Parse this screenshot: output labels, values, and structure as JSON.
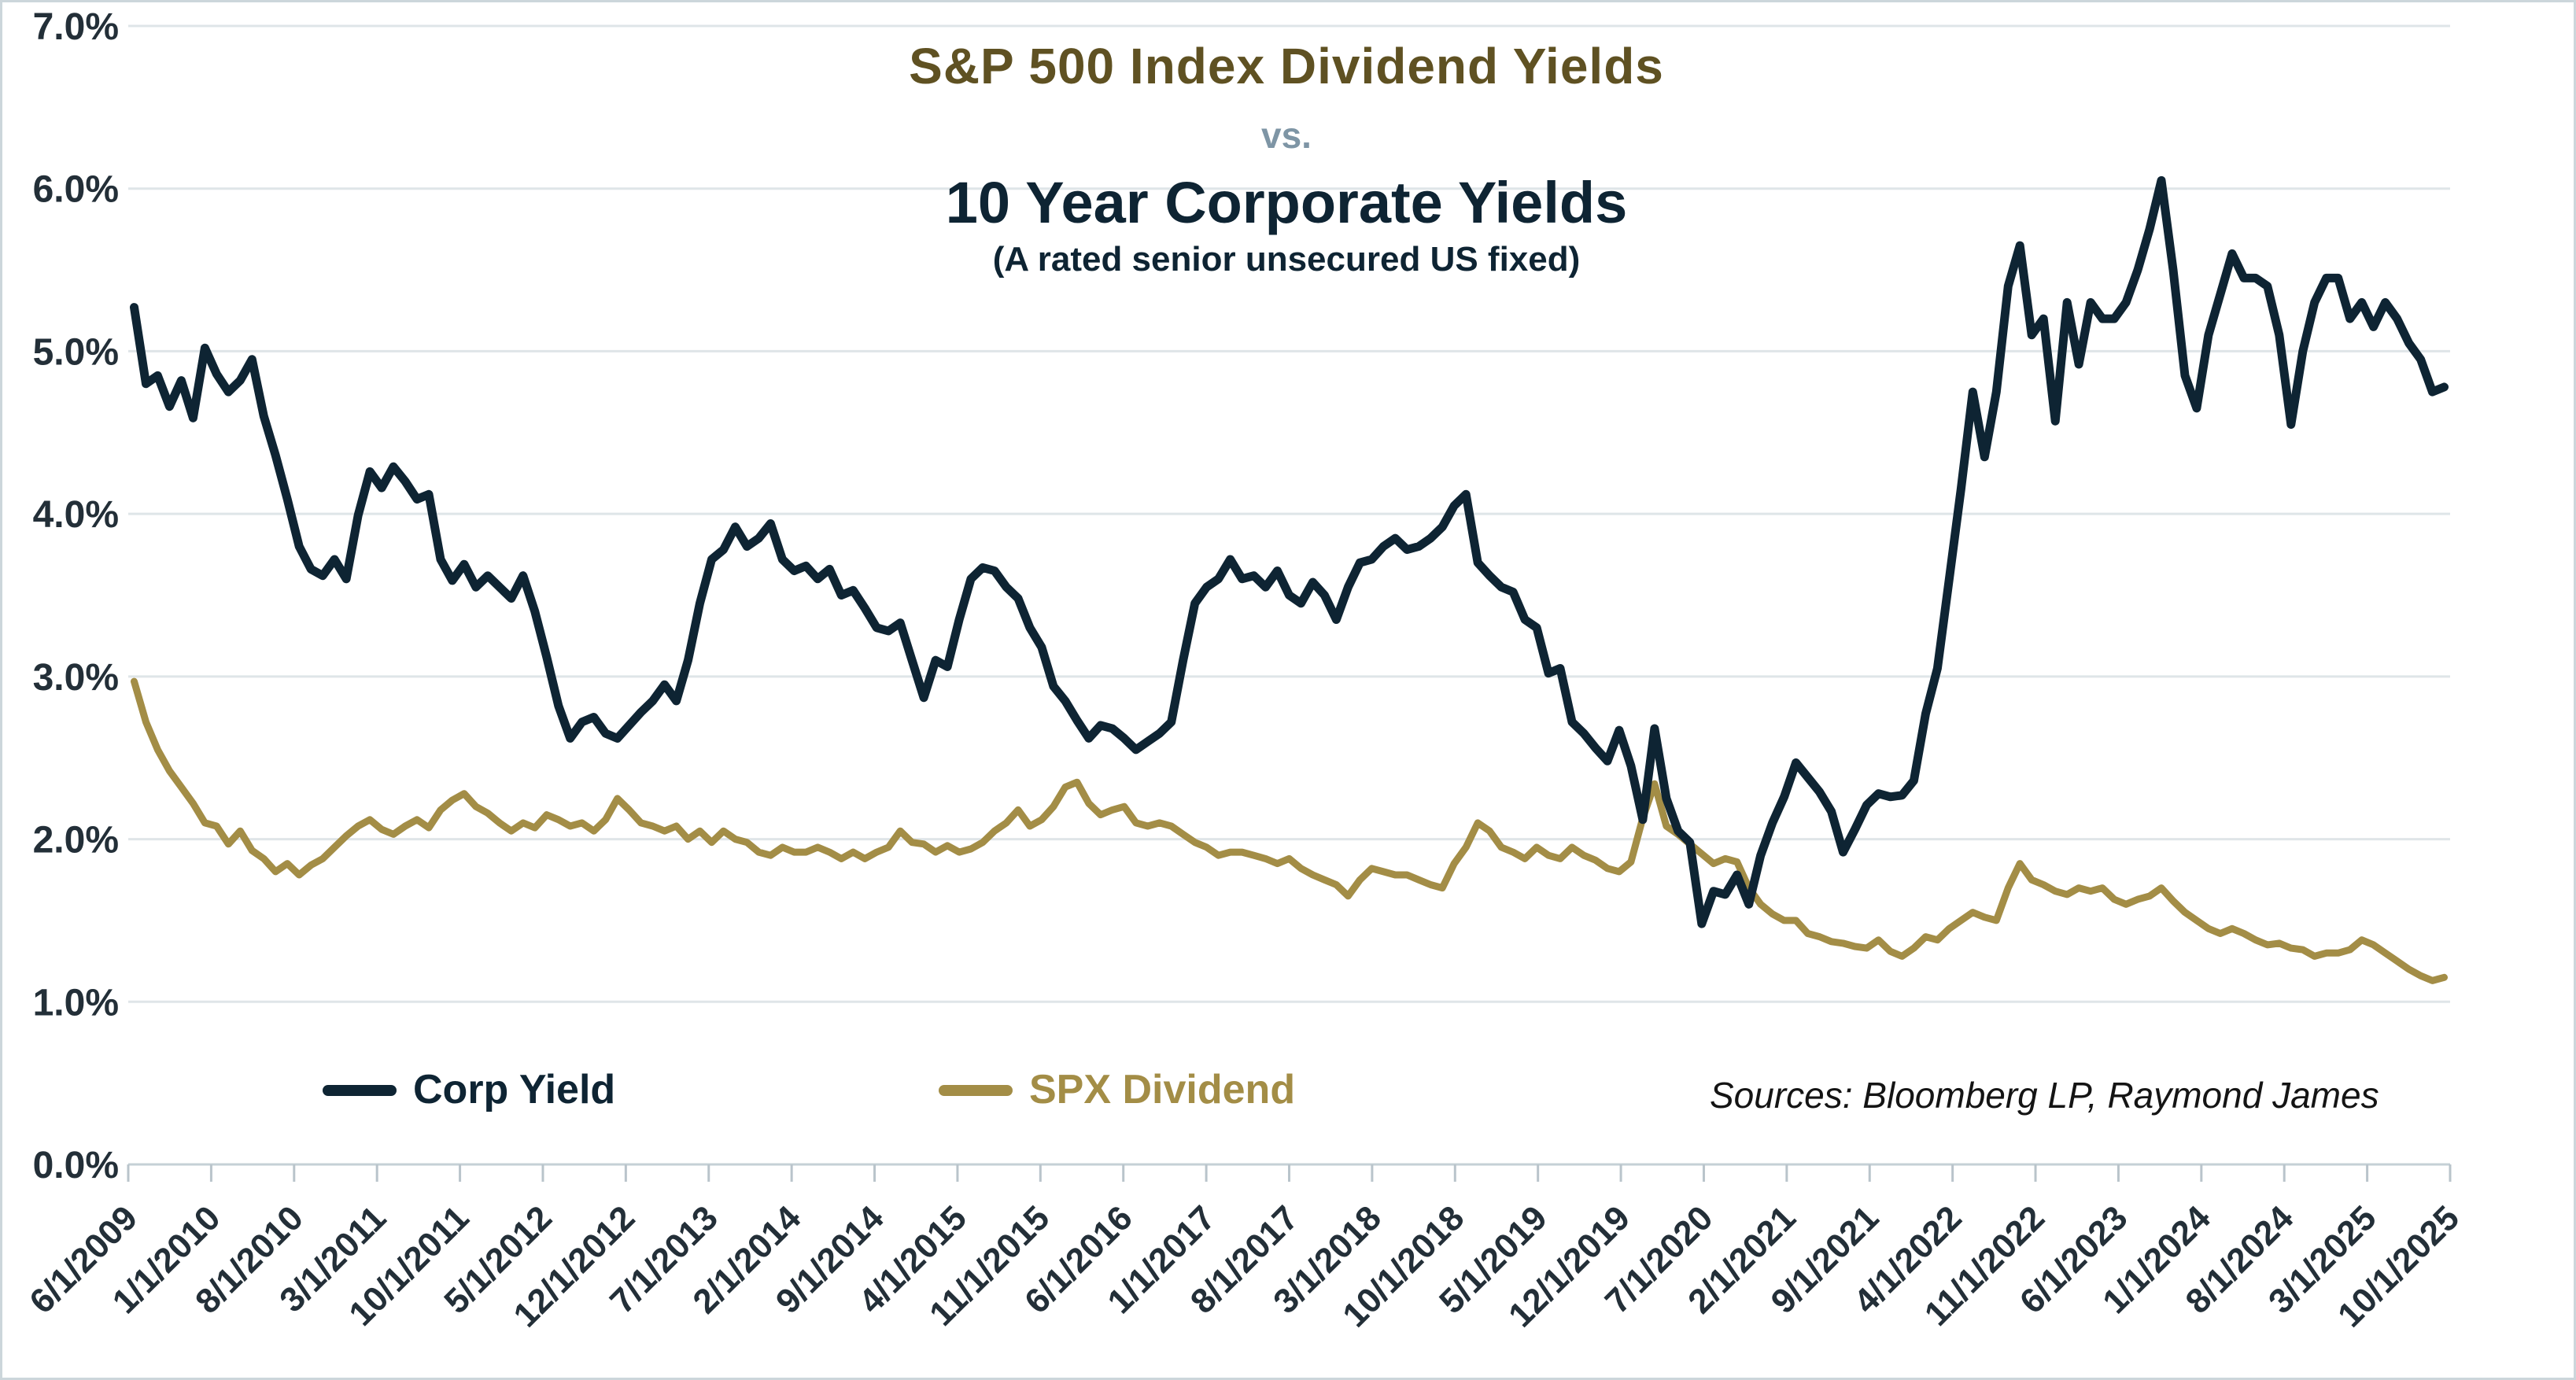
{
  "title": {
    "line1": "S&P 500 Index Dividend Yields",
    "vs": "vs.",
    "line2": "10 Year Corporate Yields",
    "subtitle": "(A rated senior unsecured US fixed)"
  },
  "source_note": "Sources: Bloomberg LP, Raymond James",
  "colors": {
    "corp_line": "#0e2433",
    "spx_line": "#a38d46",
    "title_gold": "#5f5122",
    "vs_gray_blue": "#7e95a5",
    "axis_text": "#232f38",
    "gridline": "#dfe5e8",
    "axis_line": "#c5d0d6",
    "tick_mark": "#b9c4cb",
    "background": "#ffffff"
  },
  "chart_data": {
    "type": "line",
    "start_month": "6/2009",
    "end_month": "10/2025",
    "frequency": "monthly",
    "grid": "horizontal",
    "legend_position": "bottom",
    "ylim": [
      0,
      7
    ],
    "y_tick_labels": [
      "0.0%",
      "1.0%",
      "2.0%",
      "3.0%",
      "4.0%",
      "5.0%",
      "6.0%",
      "7.0%"
    ],
    "x_tick_labels": [
      "6/1/2009",
      "1/1/2010",
      "8/1/2010",
      "3/1/2011",
      "10/1/2011",
      "5/1/2012",
      "12/1/2012",
      "7/1/2013",
      "2/1/2014",
      "9/1/2014",
      "4/1/2015",
      "11/1/2015",
      "6/1/2016",
      "1/1/2017",
      "8/1/2017",
      "3/1/2018",
      "10/1/2018",
      "5/1/2019",
      "12/1/2019",
      "7/1/2020",
      "2/1/2021",
      "9/1/2021",
      "4/1/2022",
      "11/1/2022",
      "6/1/2023",
      "1/1/2024",
      "8/1/2024",
      "3/1/2025",
      "10/1/2025"
    ],
    "series": [
      {
        "name": "Corp Yield",
        "color": "#0e2433",
        "values": [
          5.27,
          4.8,
          4.85,
          4.66,
          4.82,
          4.59,
          5.02,
          4.86,
          4.75,
          4.82,
          4.95,
          4.6,
          4.36,
          4.09,
          3.8,
          3.66,
          3.62,
          3.72,
          3.6,
          3.99,
          4.26,
          4.16,
          4.29,
          4.2,
          4.09,
          4.12,
          3.72,
          3.59,
          3.69,
          3.55,
          3.62,
          3.55,
          3.48,
          3.62,
          3.4,
          3.12,
          2.82,
          2.62,
          2.72,
          2.75,
          2.65,
          2.62,
          2.7,
          2.78,
          2.85,
          2.95,
          2.85,
          3.1,
          3.45,
          3.72,
          3.78,
          3.92,
          3.8,
          3.85,
          3.94,
          3.72,
          3.65,
          3.68,
          3.6,
          3.66,
          3.5,
          3.53,
          3.42,
          3.3,
          3.28,
          3.33,
          3.1,
          2.87,
          3.1,
          3.06,
          3.35,
          3.6,
          3.67,
          3.65,
          3.55,
          3.48,
          3.3,
          3.18,
          2.94,
          2.85,
          2.73,
          2.62,
          2.7,
          2.68,
          2.62,
          2.55,
          2.6,
          2.65,
          2.72,
          3.1,
          3.45,
          3.55,
          3.6,
          3.72,
          3.6,
          3.62,
          3.55,
          3.65,
          3.5,
          3.45,
          3.58,
          3.5,
          3.35,
          3.55,
          3.7,
          3.72,
          3.8,
          3.85,
          3.78,
          3.8,
          3.85,
          3.92,
          4.05,
          4.12,
          3.7,
          3.62,
          3.55,
          3.52,
          3.35,
          3.3,
          3.02,
          3.05,
          2.72,
          2.65,
          2.56,
          2.48,
          2.67,
          2.45,
          2.12,
          2.68,
          2.25,
          2.05,
          1.98,
          1.48,
          1.68,
          1.66,
          1.78,
          1.6,
          1.9,
          2.1,
          2.26,
          2.47,
          2.38,
          2.29,
          2.17,
          1.92,
          2.06,
          2.21,
          2.28,
          2.26,
          2.27,
          2.36,
          2.77,
          3.05,
          3.6,
          4.15,
          4.75,
          4.35,
          4.75,
          5.4,
          5.65,
          5.1,
          5.2,
          4.57,
          5.3,
          4.92,
          5.3,
          5.2,
          5.2,
          5.3,
          5.5,
          5.75,
          6.05,
          5.5,
          4.85,
          4.65,
          5.1,
          5.35,
          5.6,
          5.45,
          5.45,
          5.4,
          5.1,
          4.55,
          5.0,
          5.3,
          5.45,
          5.45,
          5.2,
          5.3,
          5.15,
          5.3,
          5.2,
          5.05,
          4.95,
          4.75,
          4.78
        ]
      },
      {
        "name": "SPX Dividend",
        "color": "#a38d46",
        "values": [
          2.97,
          2.72,
          2.55,
          2.42,
          2.32,
          2.22,
          2.1,
          2.08,
          1.97,
          2.05,
          1.93,
          1.88,
          1.8,
          1.85,
          1.78,
          1.84,
          1.88,
          1.95,
          2.02,
          2.08,
          2.12,
          2.06,
          2.03,
          2.08,
          2.12,
          2.07,
          2.18,
          2.24,
          2.28,
          2.2,
          2.16,
          2.1,
          2.05,
          2.1,
          2.07,
          2.15,
          2.12,
          2.08,
          2.1,
          2.05,
          2.12,
          2.25,
          2.18,
          2.1,
          2.08,
          2.05,
          2.08,
          2.0,
          2.05,
          1.98,
          2.05,
          2.0,
          1.98,
          1.92,
          1.9,
          1.95,
          1.92,
          1.92,
          1.95,
          1.92,
          1.88,
          1.92,
          1.88,
          1.92,
          1.95,
          2.05,
          1.98,
          1.97,
          1.92,
          1.96,
          1.92,
          1.94,
          1.98,
          2.05,
          2.1,
          2.18,
          2.08,
          2.12,
          2.2,
          2.32,
          2.35,
          2.22,
          2.15,
          2.18,
          2.2,
          2.1,
          2.08,
          2.1,
          2.08,
          2.03,
          1.98,
          1.95,
          1.9,
          1.92,
          1.92,
          1.9,
          1.88,
          1.85,
          1.88,
          1.82,
          1.78,
          1.75,
          1.72,
          1.65,
          1.75,
          1.82,
          1.8,
          1.78,
          1.78,
          1.75,
          1.72,
          1.7,
          1.85,
          1.95,
          2.1,
          2.05,
          1.95,
          1.92,
          1.88,
          1.95,
          1.9,
          1.88,
          1.95,
          1.9,
          1.87,
          1.82,
          1.8,
          1.86,
          2.13,
          2.34,
          2.08,
          2.03,
          1.97,
          1.91,
          1.85,
          1.88,
          1.86,
          1.7,
          1.6,
          1.54,
          1.5,
          1.5,
          1.42,
          1.4,
          1.37,
          1.36,
          1.34,
          1.33,
          1.38,
          1.31,
          1.28,
          1.33,
          1.4,
          1.38,
          1.45,
          1.5,
          1.55,
          1.52,
          1.5,
          1.7,
          1.85,
          1.75,
          1.72,
          1.68,
          1.66,
          1.7,
          1.68,
          1.7,
          1.63,
          1.6,
          1.63,
          1.65,
          1.7,
          1.62,
          1.55,
          1.5,
          1.45,
          1.42,
          1.45,
          1.42,
          1.38,
          1.35,
          1.36,
          1.33,
          1.32,
          1.28,
          1.3,
          1.3,
          1.32,
          1.38,
          1.35,
          1.3,
          1.25,
          1.2,
          1.16,
          1.13,
          1.15
        ]
      }
    ]
  }
}
